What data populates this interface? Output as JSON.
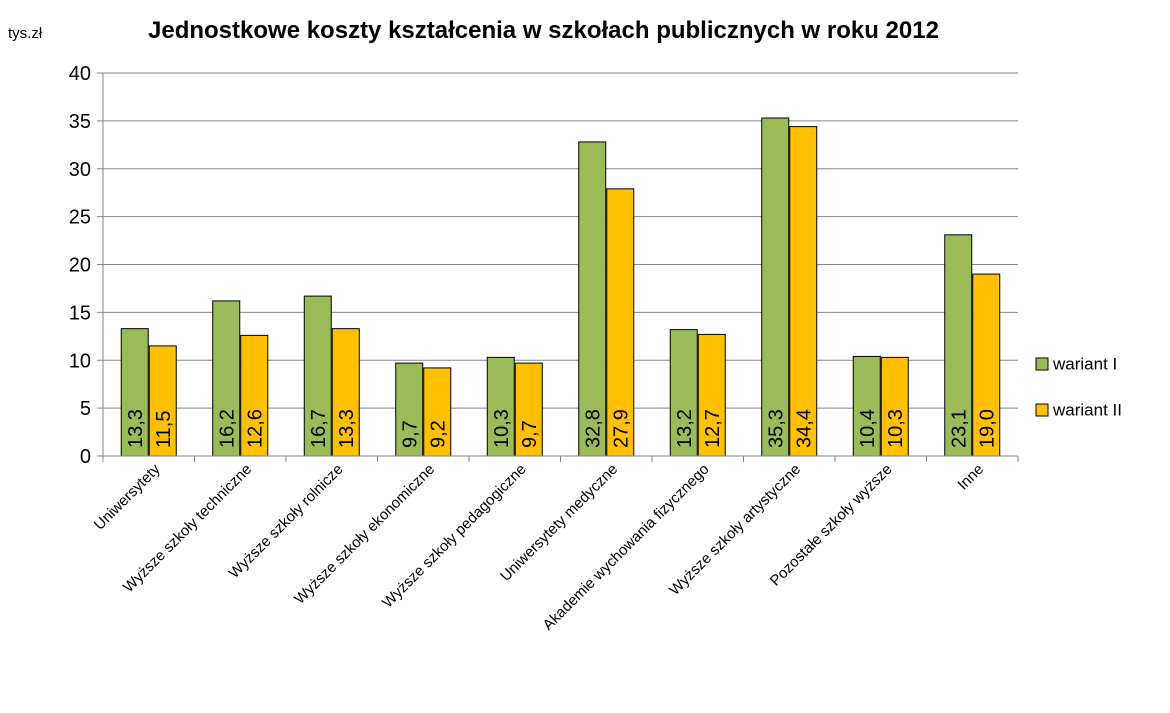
{
  "chart_data": {
    "type": "bar",
    "title": "Jednostkowe koszty kształcenia w szkołach publicznych w roku  2012",
    "ylabel": "tys.zł",
    "xlabel": "",
    "ylim": [
      0,
      40
    ],
    "yticks": [
      0,
      5,
      10,
      15,
      20,
      25,
      30,
      35,
      40
    ],
    "grid": true,
    "legend_position": "right",
    "categories": [
      "Uniwersytety",
      "Wyższe szkoły techniczne",
      "Wyższe szkoły rolnicze",
      "Wyższe szkoły ekonomiczne",
      "Wyższe szkoły pedagogiczne",
      "Uniwersytety medyczne",
      "Akademie wychowania fizycznego",
      "Wyższe szkoły artystyczne",
      "Pozostałe szkoły wyższe",
      "Inne"
    ],
    "series": [
      {
        "name": "wariant I",
        "color": "#9BBB59",
        "values": [
          13.3,
          16.2,
          16.7,
          9.7,
          10.3,
          32.8,
          13.2,
          35.3,
          10.4,
          23.1
        ],
        "labels": [
          "13,3",
          "16,2",
          "16,7",
          "9,7",
          "10,3",
          "32,8",
          "13,2",
          "35,3",
          "10,4",
          "23,1"
        ]
      },
      {
        "name": "wariant II",
        "color": "#FFC000",
        "values": [
          11.5,
          12.6,
          13.3,
          9.2,
          9.7,
          27.9,
          12.7,
          34.4,
          10.3,
          19.0
        ],
        "labels": [
          "11,5",
          "12,6",
          "13,3",
          "9,2",
          "9,7",
          "27,9",
          "12,7",
          "34,4",
          "10,3",
          "19,0"
        ]
      }
    ]
  }
}
